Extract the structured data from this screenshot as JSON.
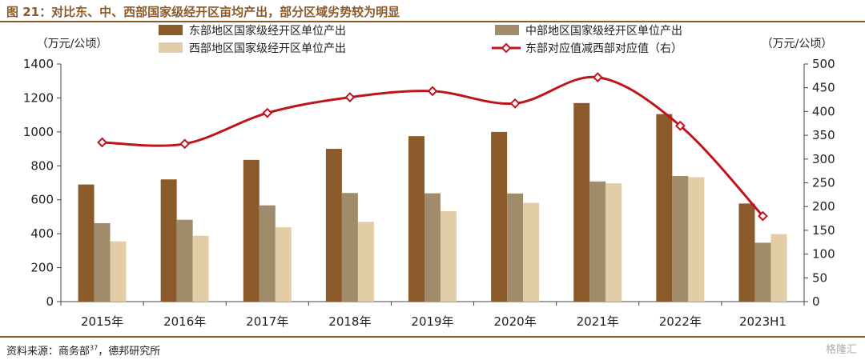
{
  "figure": {
    "title": "图 21：对比东、中、西部国家级经开区亩均产出，部分区域劣势较为明显",
    "source_prefix": "资料来源：商务部",
    "source_sup": "37",
    "source_suffix": "，德邦研究所",
    "watermark": "格隆汇"
  },
  "colors": {
    "east": "#8B5A2B",
    "central": "#A08C6A",
    "west": "#E2CDA6",
    "diff": "#C0141C",
    "rule": "#8B5A2B"
  },
  "chart_data": {
    "type": "bar",
    "categories": [
      "2015年",
      "2016年",
      "2017年",
      "2018年",
      "2019年",
      "2020年",
      "2021年",
      "2022年",
      "2023H1"
    ],
    "series": [
      {
        "name": "东部地区国家级经开区单位产出",
        "axis": "left",
        "values": [
          690,
          720,
          835,
          900,
          975,
          1000,
          1170,
          1105,
          578
        ]
      },
      {
        "name": "中部地区国家级经开区单位产出",
        "axis": "left",
        "values": [
          462,
          482,
          567,
          640,
          638,
          637,
          708,
          740,
          347
        ]
      },
      {
        "name": "西部地区国家级经开区单位产出",
        "axis": "left",
        "values": [
          355,
          388,
          438,
          470,
          533,
          582,
          697,
          733,
          398
        ]
      },
      {
        "name": "东部对应值减西部对应值（右）",
        "axis": "right",
        "type": "line",
        "values": [
          335,
          332,
          397,
          430,
          443,
          417,
          472,
          370,
          180
        ]
      }
    ],
    "y_left": {
      "label": "（万元/公顷）",
      "min": 0,
      "max": 1400,
      "ticks": [
        0,
        200,
        400,
        600,
        800,
        1000,
        1200,
        1400
      ]
    },
    "y_right": {
      "label": "（万元/公顷）",
      "min": 0,
      "max": 500,
      "ticks": [
        0,
        50,
        100,
        150,
        200,
        250,
        300,
        350,
        400,
        450,
        500
      ]
    },
    "grid": false,
    "legend_position": "top"
  }
}
